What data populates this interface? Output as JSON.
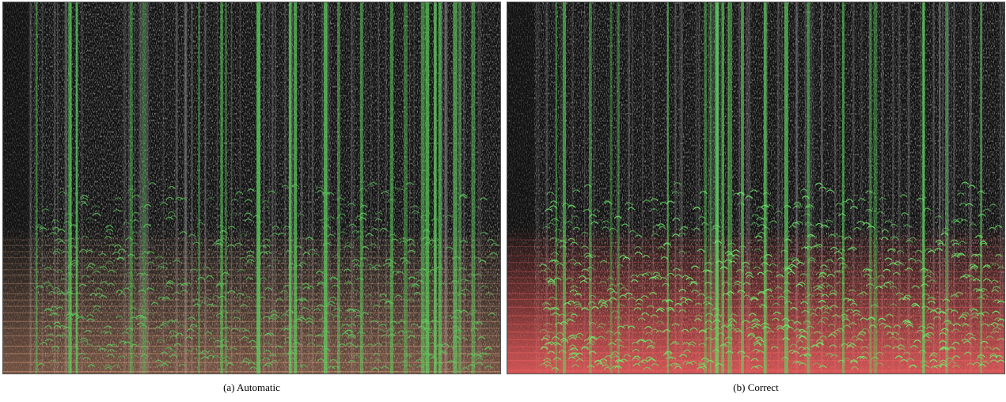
{
  "figure": {
    "panels": [
      {
        "caption": "(a) Automatic"
      },
      {
        "caption": "(b) Correct"
      }
    ]
  }
}
